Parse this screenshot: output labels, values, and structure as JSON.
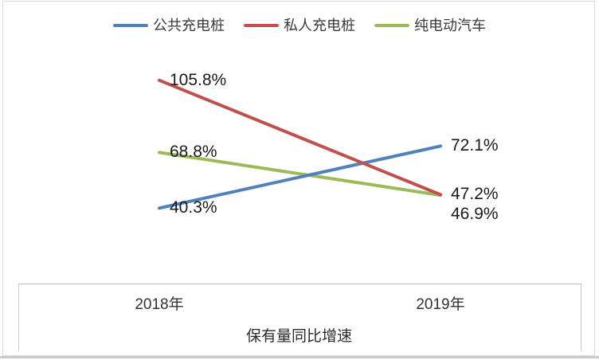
{
  "chart_data": {
    "type": "line",
    "categories": [
      "2018年",
      "2019年"
    ],
    "series": [
      {
        "name": "公共充电桩",
        "color": "#4F81BD",
        "values": [
          40.3,
          72.1
        ],
        "labels": [
          "40.3%",
          "72.1%"
        ]
      },
      {
        "name": "私人充电桩",
        "color": "#C0504D",
        "values": [
          105.8,
          47.2
        ],
        "labels": [
          "105.8%",
          "47.2%"
        ]
      },
      {
        "name": "纯电动汽车",
        "color": "#9BBB59",
        "values": [
          68.8,
          46.9
        ],
        "labels": [
          "68.8%",
          "46.9%"
        ]
      }
    ],
    "title": "",
    "xlabel": "保有量同比增速",
    "ylabel": "",
    "ylim": [
      0,
      120
    ],
    "grid": false,
    "legend_position": "top",
    "data_labels": true,
    "colors": {
      "axis_line": "#bfbfbf",
      "border": "#d9d9d9",
      "label_text": "#1a1a1a"
    }
  }
}
